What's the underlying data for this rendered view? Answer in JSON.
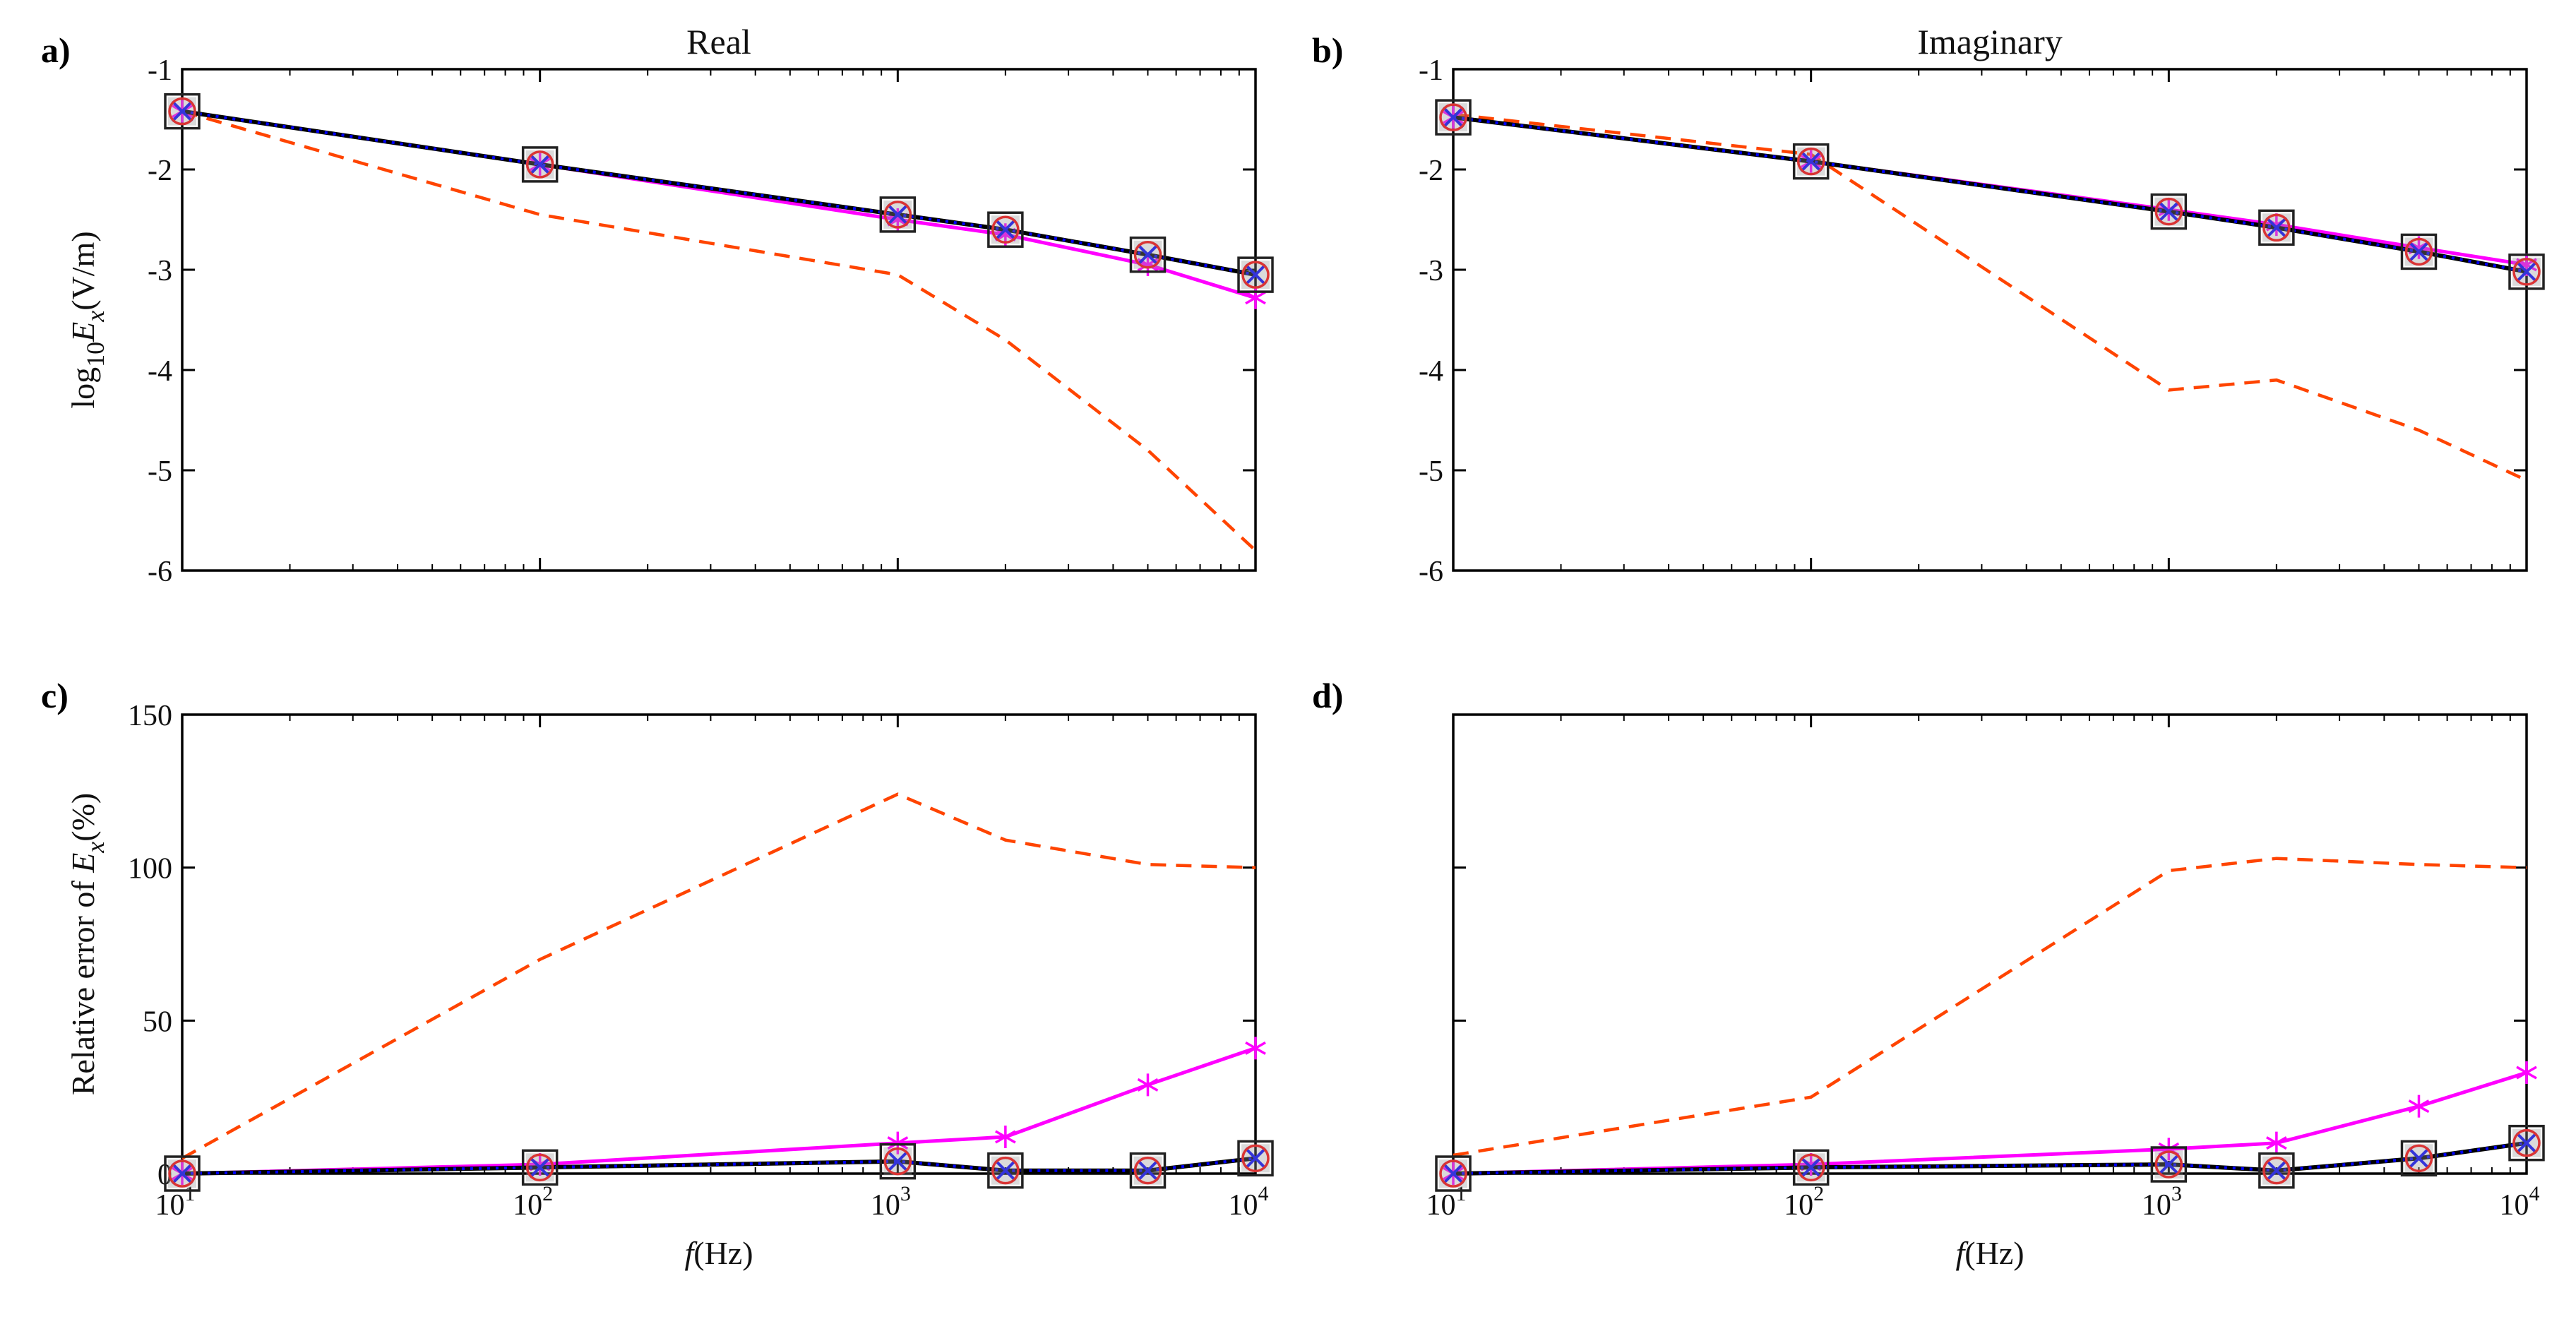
{
  "chart_data": [
    {
      "panel": "a)",
      "type": "line",
      "title": "Real",
      "xlabel": "",
      "ylabel": "log10Ex(V/m)",
      "ylabel_parts": {
        "pre": "log",
        "sub1": "10",
        "var": "E",
        "sub2": "x",
        "post": "(V/m)"
      },
      "xscale": "log",
      "xlim": [
        10,
        10000
      ],
      "ylim": [
        -6,
        -1
      ],
      "yticks": [
        "-6",
        "-5",
        "-4",
        "-3",
        "-2",
        "-1"
      ],
      "x": [
        10,
        100,
        1000,
        2000,
        5000,
        10000
      ],
      "series": [
        {
          "name": "dashed-orange",
          "style": "dashed",
          "color": "#ff4400",
          "values": [
            -1.42,
            -2.45,
            -3.05,
            -3.7,
            -4.8,
            -5.8
          ]
        },
        {
          "name": "magenta-star",
          "style": "solid",
          "color": "#ff00ff",
          "values": [
            -1.42,
            -1.95,
            -2.5,
            -2.65,
            -2.95,
            -3.28
          ]
        },
        {
          "name": "black",
          "style": "solid",
          "color": "#000000",
          "values": [
            -1.42,
            -1.95,
            -2.45,
            -2.6,
            -2.85,
            -3.05
          ]
        },
        {
          "name": "blue-x",
          "style": "dotted",
          "color": "#0000ff",
          "values": [
            -1.42,
            -1.95,
            -2.45,
            -2.6,
            -2.85,
            -3.05
          ]
        },
        {
          "name": "red-circle",
          "style": "markers",
          "color": "#ff0000",
          "values": [
            -1.42,
            -1.95,
            -2.45,
            -2.6,
            -2.85,
            -3.05
          ]
        },
        {
          "name": "gray-square",
          "style": "markers",
          "color": "#000000",
          "values": [
            -1.42,
            -1.95,
            -2.45,
            -2.6,
            -2.85,
            -3.05
          ]
        }
      ]
    },
    {
      "panel": "b)",
      "type": "line",
      "title": "Imaginary",
      "xlabel": "",
      "ylabel": "",
      "xscale": "log",
      "xlim": [
        10,
        10000
      ],
      "ylim": [
        -6,
        -1
      ],
      "yticks": [
        "-6",
        "-5",
        "-4",
        "-3",
        "-2",
        "-1"
      ],
      "x": [
        10,
        100,
        1000,
        2000,
        5000,
        10000
      ],
      "series": [
        {
          "name": "dashed-orange",
          "style": "dashed",
          "color": "#ff4400",
          "values": [
            -1.45,
            -1.85,
            -4.2,
            -4.1,
            -4.6,
            -5.1
          ]
        },
        {
          "name": "magenta-star",
          "style": "solid",
          "color": "#ff00ff",
          "values": [
            -1.48,
            -1.92,
            -2.4,
            -2.55,
            -2.78,
            -2.95
          ]
        },
        {
          "name": "black",
          "style": "solid",
          "color": "#000000",
          "values": [
            -1.48,
            -1.92,
            -2.42,
            -2.58,
            -2.82,
            -3.02
          ]
        },
        {
          "name": "blue-x",
          "style": "dotted",
          "color": "#0000ff",
          "values": [
            -1.48,
            -1.92,
            -2.42,
            -2.58,
            -2.82,
            -3.02
          ]
        },
        {
          "name": "red-circle",
          "style": "markers",
          "color": "#ff0000",
          "values": [
            -1.48,
            -1.92,
            -2.42,
            -2.58,
            -2.82,
            -3.02
          ]
        },
        {
          "name": "gray-square",
          "style": "markers",
          "color": "#000000",
          "values": [
            -1.48,
            -1.92,
            -2.42,
            -2.58,
            -2.82,
            -3.02
          ]
        }
      ]
    },
    {
      "panel": "c)",
      "type": "line",
      "title": "",
      "xlabel": "f(Hz)",
      "xlabel_parts": {
        "var": "f",
        "post": "(Hz)"
      },
      "ylabel": "Relative error of Ex(%)",
      "ylabel_parts": {
        "pre": "Relative error of ",
        "var": "E",
        "sub2": "x",
        "post": "(%)"
      },
      "xscale": "log",
      "xlim": [
        10,
        10000
      ],
      "ylim": [
        0,
        150
      ],
      "yticks": [
        "0",
        "50",
        "100",
        "150"
      ],
      "x": [
        10,
        100,
        1000,
        2000,
        5000,
        10000
      ],
      "series": [
        {
          "name": "dashed-orange",
          "style": "dashed",
          "color": "#ff4400",
          "values": [
            5,
            70,
            124,
            109,
            101,
            100
          ]
        },
        {
          "name": "magenta-star",
          "style": "solid",
          "color": "#ff00ff",
          "values": [
            0,
            3,
            10,
            12,
            29,
            41
          ]
        },
        {
          "name": "black",
          "style": "solid",
          "color": "#000000",
          "values": [
            0,
            2,
            4,
            1,
            1,
            5
          ]
        },
        {
          "name": "blue-x",
          "style": "dotted",
          "color": "#0000ff",
          "values": [
            0,
            2,
            4,
            1,
            1,
            5
          ]
        },
        {
          "name": "red-circle",
          "style": "markers",
          "color": "#ff0000",
          "values": [
            0,
            2,
            4,
            1,
            1,
            5
          ]
        },
        {
          "name": "gray-square",
          "style": "markers",
          "color": "#000000",
          "values": [
            0,
            2,
            4,
            1,
            1,
            5
          ]
        }
      ]
    },
    {
      "panel": "d)",
      "type": "line",
      "title": "",
      "xlabel": "f(Hz)",
      "xlabel_parts": {
        "var": "f",
        "post": "(Hz)"
      },
      "ylabel": "",
      "xscale": "log",
      "xlim": [
        10,
        10000
      ],
      "ylim": [
        0,
        150
      ],
      "yticks": [],
      "x": [
        10,
        100,
        1000,
        2000,
        5000,
        10000
      ],
      "series": [
        {
          "name": "dashed-orange",
          "style": "dashed",
          "color": "#ff4400",
          "values": [
            6,
            25,
            99,
            103,
            101,
            100
          ]
        },
        {
          "name": "magenta-star",
          "style": "solid",
          "color": "#ff00ff",
          "values": [
            0,
            3,
            8,
            10,
            22,
            33
          ]
        },
        {
          "name": "black",
          "style": "solid",
          "color": "#000000",
          "values": [
            0,
            2,
            3,
            1,
            5,
            10
          ]
        },
        {
          "name": "blue-x",
          "style": "dotted",
          "color": "#0000ff",
          "values": [
            0,
            2,
            3,
            1,
            5,
            10
          ]
        },
        {
          "name": "red-circle",
          "style": "markers",
          "color": "#ff0000",
          "values": [
            0,
            2,
            3,
            1,
            5,
            10
          ]
        },
        {
          "name": "gray-square",
          "style": "markers",
          "color": "#000000",
          "values": [
            0,
            2,
            3,
            1,
            5,
            10
          ]
        }
      ]
    }
  ]
}
